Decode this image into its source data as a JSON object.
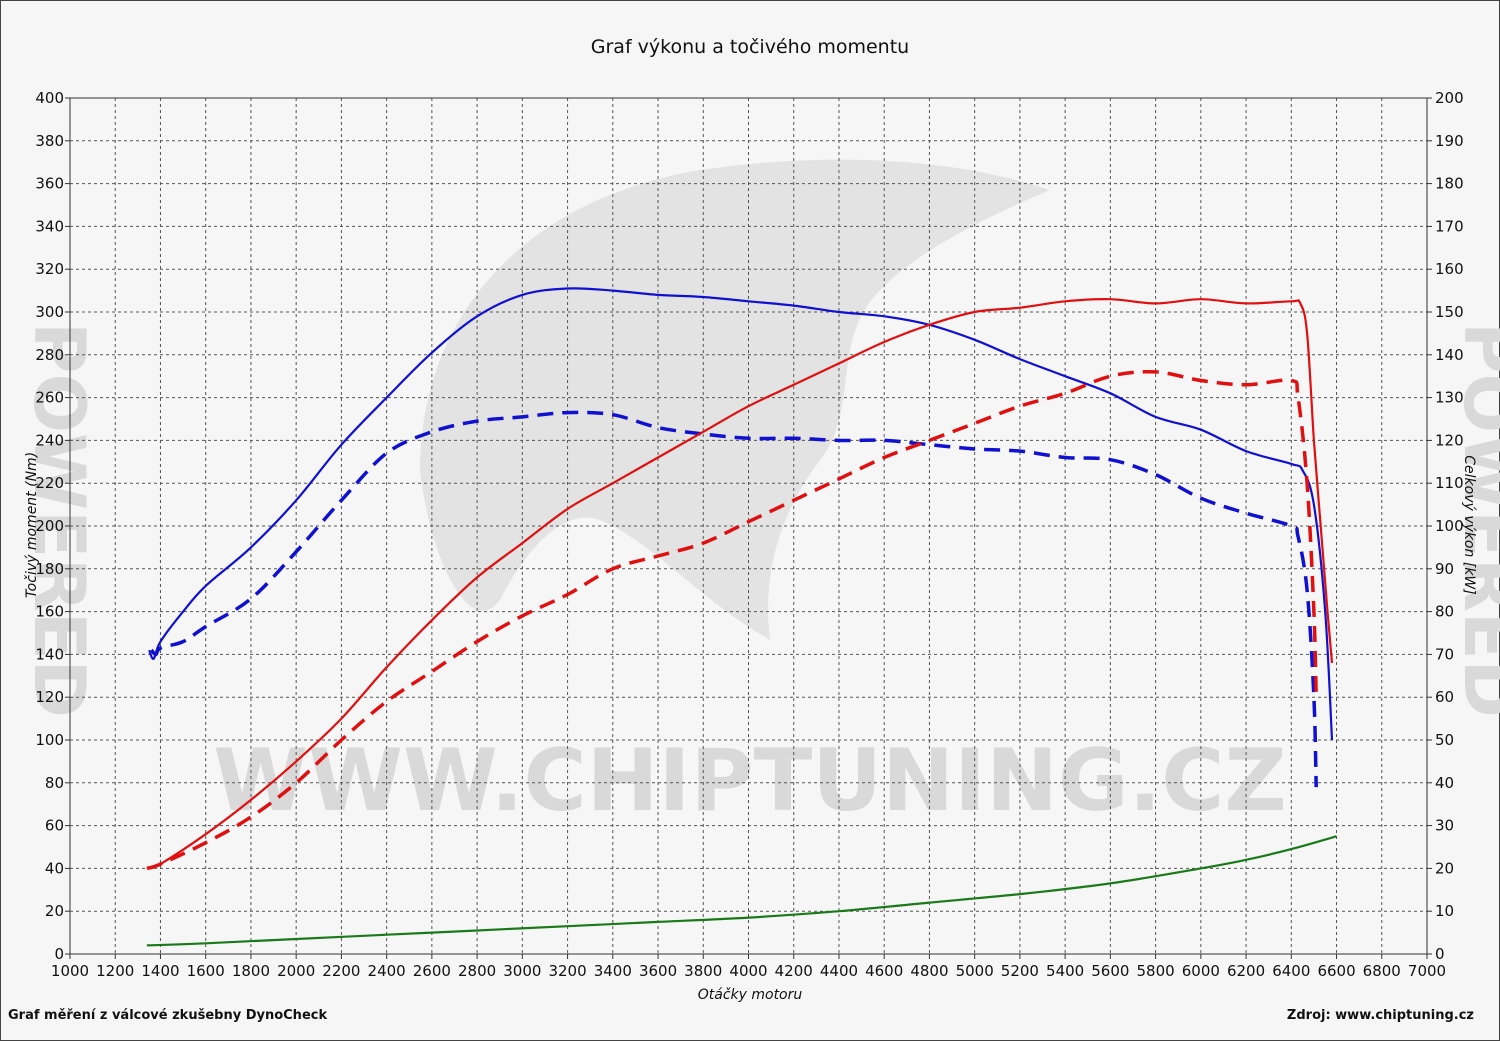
{
  "chart_data": {
    "type": "line",
    "title": "Graf výkonu a točivého momentu",
    "xlabel": "Otáčky motoru",
    "ylabel_left": "Točivý moment (Nm)",
    "ylabel_right": "Celkový výkon [kW]",
    "xlim": [
      1000,
      7000
    ],
    "ylim_left": [
      0,
      400
    ],
    "ylim_right": [
      0,
      200
    ],
    "x_ticks": [
      1000,
      1200,
      1400,
      1600,
      1800,
      2000,
      2200,
      2400,
      2600,
      2800,
      3000,
      3200,
      3400,
      3600,
      3800,
      4000,
      4200,
      4400,
      4600,
      4800,
      5000,
      5200,
      5400,
      5600,
      5800,
      6000,
      6200,
      6400,
      6600,
      6800,
      7000
    ],
    "y_ticks_left": [
      0,
      20,
      40,
      60,
      80,
      100,
      120,
      140,
      160,
      180,
      200,
      220,
      240,
      260,
      280,
      300,
      320,
      340,
      360,
      380,
      400
    ],
    "y_ticks_right": [
      0,
      10,
      20,
      30,
      40,
      50,
      60,
      70,
      80,
      90,
      100,
      110,
      120,
      130,
      140,
      150,
      160,
      170,
      180,
      190,
      200
    ],
    "grid": true,
    "series": [
      {
        "axis": "left",
        "color": "#1010d0",
        "dash": false,
        "points": [
          [
            1350,
            142
          ],
          [
            1370,
            138
          ],
          [
            1400,
            146
          ],
          [
            1500,
            160
          ],
          [
            1600,
            172
          ],
          [
            1800,
            190
          ],
          [
            2000,
            212
          ],
          [
            2200,
            238
          ],
          [
            2400,
            260
          ],
          [
            2600,
            281
          ],
          [
            2800,
            298
          ],
          [
            3000,
            308
          ],
          [
            3200,
            311
          ],
          [
            3400,
            310
          ],
          [
            3600,
            308
          ],
          [
            3800,
            307
          ],
          [
            4000,
            305
          ],
          [
            4200,
            303
          ],
          [
            4400,
            300
          ],
          [
            4600,
            298
          ],
          [
            4800,
            294
          ],
          [
            5000,
            287
          ],
          [
            5200,
            278
          ],
          [
            5400,
            270
          ],
          [
            5600,
            262
          ],
          [
            5800,
            251
          ],
          [
            6000,
            245
          ],
          [
            6200,
            235
          ],
          [
            6400,
            229
          ],
          [
            6450,
            226
          ],
          [
            6500,
            210
          ],
          [
            6550,
            160
          ],
          [
            6580,
            100
          ]
        ]
      },
      {
        "axis": "left",
        "color": "#1010d0",
        "dash": true,
        "points": [
          [
            1360,
            142
          ],
          [
            1380,
            140
          ],
          [
            1400,
            143
          ],
          [
            1500,
            146
          ],
          [
            1600,
            153
          ],
          [
            1800,
            166
          ],
          [
            2000,
            188
          ],
          [
            2200,
            212
          ],
          [
            2400,
            234
          ],
          [
            2600,
            244
          ],
          [
            2800,
            249
          ],
          [
            3000,
            251
          ],
          [
            3200,
            253
          ],
          [
            3400,
            252
          ],
          [
            3600,
            246
          ],
          [
            3800,
            243
          ],
          [
            4000,
            241
          ],
          [
            4200,
            241
          ],
          [
            4400,
            240
          ],
          [
            4600,
            240
          ],
          [
            4800,
            238
          ],
          [
            5000,
            236
          ],
          [
            5200,
            235
          ],
          [
            5400,
            232
          ],
          [
            5600,
            231
          ],
          [
            5800,
            224
          ],
          [
            6000,
            213
          ],
          [
            6200,
            206
          ],
          [
            6400,
            200
          ],
          [
            6430,
            195
          ],
          [
            6470,
            170
          ],
          [
            6500,
            120
          ],
          [
            6510,
            78
          ]
        ]
      },
      {
        "axis": "right",
        "color": "#e01010",
        "dash": false,
        "points": [
          [
            1350,
            20
          ],
          [
            1400,
            21
          ],
          [
            1600,
            28
          ],
          [
            1800,
            36
          ],
          [
            2000,
            45
          ],
          [
            2200,
            55
          ],
          [
            2400,
            67
          ],
          [
            2600,
            78
          ],
          [
            2800,
            88
          ],
          [
            3000,
            96
          ],
          [
            3200,
            104
          ],
          [
            3400,
            110
          ],
          [
            3600,
            116
          ],
          [
            3800,
            122
          ],
          [
            4000,
            128
          ],
          [
            4200,
            133
          ],
          [
            4400,
            138
          ],
          [
            4600,
            143
          ],
          [
            4800,
            147
          ],
          [
            5000,
            150
          ],
          [
            5200,
            151
          ],
          [
            5400,
            152.5
          ],
          [
            5600,
            153
          ],
          [
            5800,
            152
          ],
          [
            6000,
            153
          ],
          [
            6200,
            152
          ],
          [
            6400,
            152.5
          ],
          [
            6440,
            152
          ],
          [
            6470,
            145
          ],
          [
            6500,
            120
          ],
          [
            6530,
            100
          ],
          [
            6560,
            80
          ],
          [
            6580,
            68
          ]
        ]
      },
      {
        "axis": "right",
        "color": "#e01010",
        "dash": true,
        "points": [
          [
            1340,
            20
          ],
          [
            1400,
            21
          ],
          [
            1600,
            26
          ],
          [
            1800,
            32
          ],
          [
            2000,
            40
          ],
          [
            2200,
            50
          ],
          [
            2400,
            59
          ],
          [
            2600,
            66
          ],
          [
            2800,
            73
          ],
          [
            3000,
            79
          ],
          [
            3200,
            84
          ],
          [
            3400,
            90
          ],
          [
            3600,
            93
          ],
          [
            3800,
            96
          ],
          [
            4000,
            101
          ],
          [
            4200,
            106
          ],
          [
            4400,
            111
          ],
          [
            4600,
            116
          ],
          [
            4800,
            120
          ],
          [
            5000,
            124
          ],
          [
            5200,
            128
          ],
          [
            5400,
            131
          ],
          [
            5600,
            135
          ],
          [
            5800,
            136
          ],
          [
            6000,
            134
          ],
          [
            6200,
            133
          ],
          [
            6400,
            134
          ],
          [
            6430,
            130
          ],
          [
            6470,
            110
          ],
          [
            6500,
            80
          ],
          [
            6510,
            60
          ]
        ]
      },
      {
        "axis": "left",
        "color": "#1a7a1a",
        "dash": false,
        "points": [
          [
            1340,
            4
          ],
          [
            1600,
            5
          ],
          [
            2000,
            7
          ],
          [
            2400,
            9
          ],
          [
            2800,
            11
          ],
          [
            3200,
            13
          ],
          [
            3600,
            15
          ],
          [
            4000,
            17
          ],
          [
            4400,
            20
          ],
          [
            4800,
            24
          ],
          [
            5200,
            28
          ],
          [
            5600,
            33
          ],
          [
            6000,
            40
          ],
          [
            6200,
            44
          ],
          [
            6400,
            49
          ],
          [
            6600,
            55
          ]
        ]
      }
    ]
  },
  "watermark": "WWW.CHIPTUNING.CZ",
  "watermark_side": "POWERED",
  "footer": {
    "left": "Graf měření z válcové zkušebny DynoCheck",
    "right": "Zdroj: www.chiptuning.cz"
  }
}
